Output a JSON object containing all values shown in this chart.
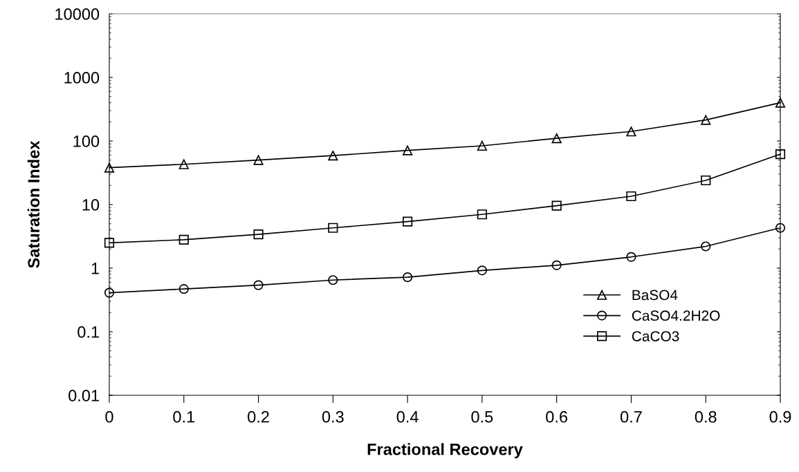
{
  "chart_data": {
    "type": "line",
    "xlabel": "Fractional Recovery",
    "ylabel": "Saturation Index",
    "x": [
      0,
      0.1,
      0.2,
      0.3,
      0.4,
      0.5,
      0.6,
      0.7,
      0.8,
      0.9
    ],
    "series": [
      {
        "name": "BaSO4",
        "color": "#000000",
        "marker": "triangle",
        "values": [
          38,
          43,
          50,
          59,
          71,
          84,
          110,
          141,
          214,
          400
        ]
      },
      {
        "name": "CaSO4.2H2O",
        "color": "#000000",
        "marker": "circle",
        "values": [
          0.41,
          0.47,
          0.54,
          0.65,
          0.72,
          0.92,
          1.11,
          1.5,
          2.2,
          4.3
        ]
      },
      {
        "name": "CaCO3",
        "color": "#000000",
        "marker": "square",
        "values": [
          2.5,
          2.8,
          3.4,
          4.3,
          5.4,
          7.0,
          9.6,
          13.5,
          24,
          62
        ]
      }
    ],
    "log": "y",
    "xlim": [
      0,
      0.9
    ],
    "xticks": [
      0,
      0.1,
      0.2,
      0.3,
      0.4,
      0.5,
      0.6,
      0.7,
      0.8,
      0.9
    ],
    "ylim": [
      0.01,
      10000
    ],
    "yticks": [
      0.01,
      0.1,
      1,
      10,
      100,
      1000,
      10000
    ],
    "grid": false,
    "legend": "bottom right",
    "line_style": "solid"
  }
}
